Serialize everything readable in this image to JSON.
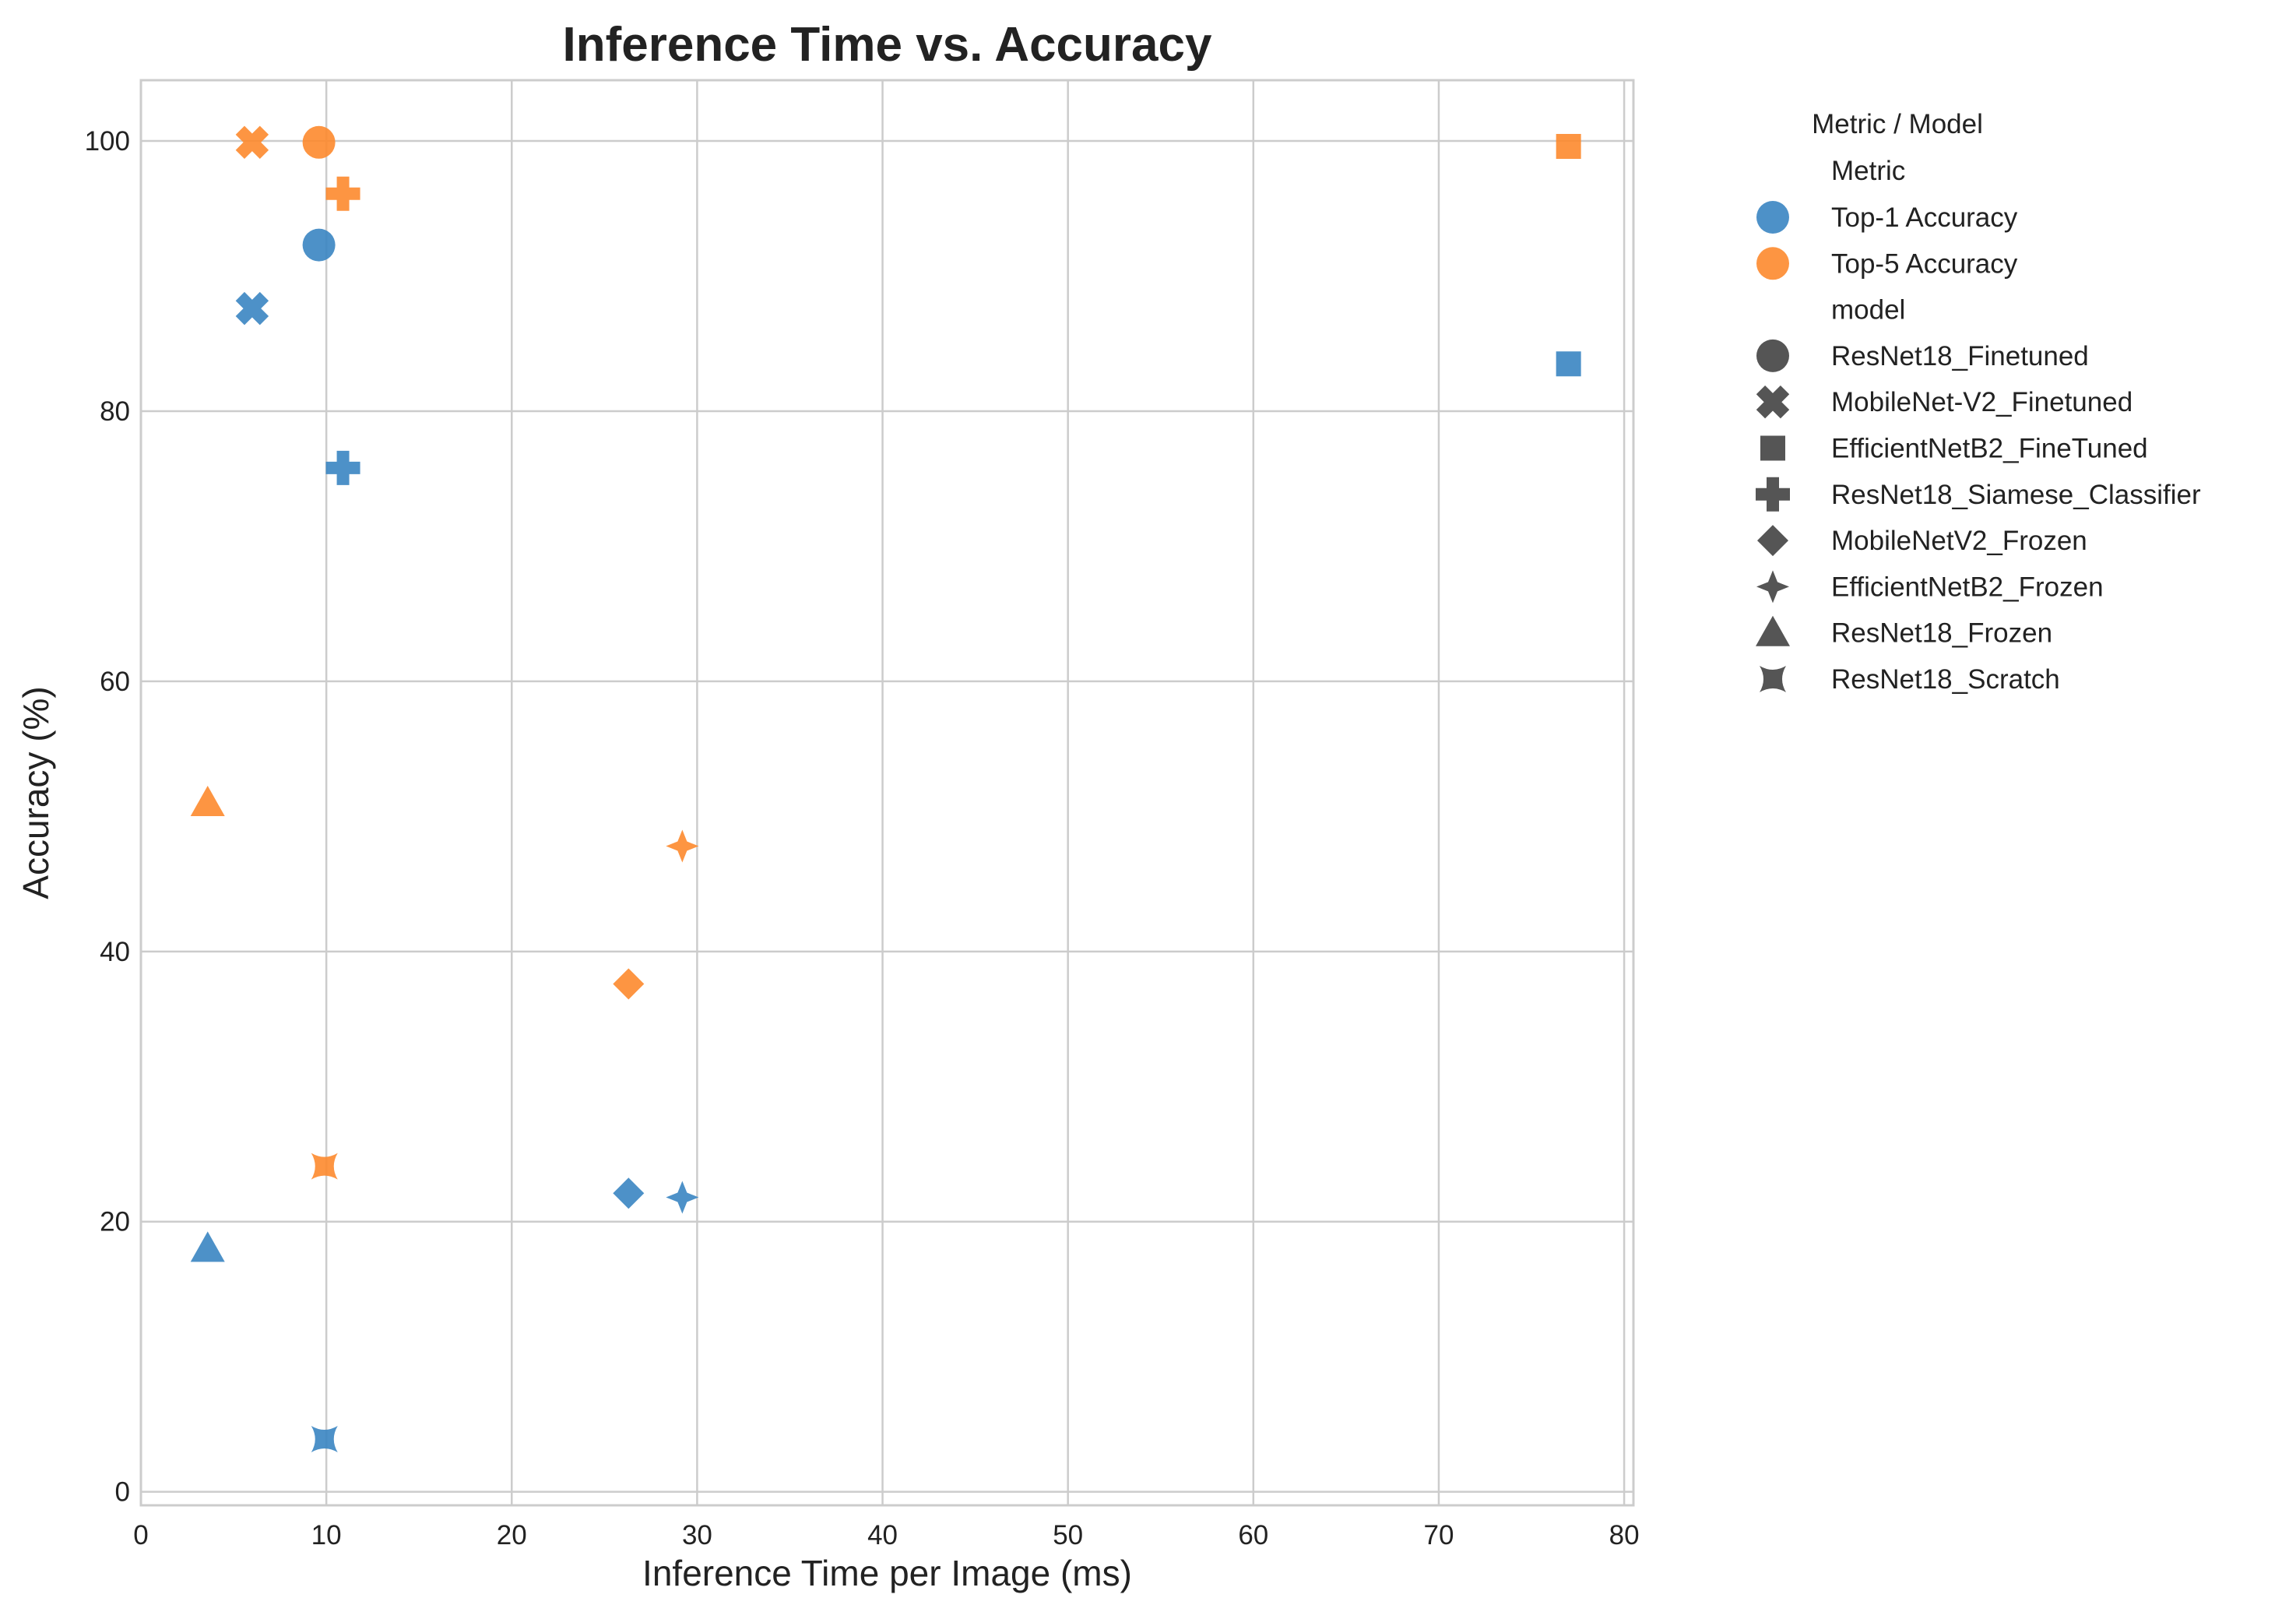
{
  "chart_data": {
    "type": "scatter",
    "title": "Inference Time vs. Accuracy",
    "xlabel": "Inference Time per Image (ms)",
    "ylabel": "Accuracy (%)",
    "xlim": [
      0,
      80.5
    ],
    "ylim": [
      -1,
      104.5
    ],
    "xticks": [
      "0",
      "10",
      "20",
      "30",
      "40",
      "50",
      "60",
      "70",
      "80"
    ],
    "yticks": [
      "0",
      "20",
      "40",
      "60",
      "80",
      "100"
    ],
    "grid": true,
    "legend_position": "outside-right",
    "legend": {
      "title": "Metric / Model",
      "metric_header": "Metric",
      "metrics": [
        {
          "name": "Top-1 Accuracy",
          "color": "#3a85c2"
        },
        {
          "name": "Top-5 Accuracy",
          "color": "#fd8a2e"
        }
      ],
      "model_header": "model",
      "models": [
        {
          "name": "ResNet18_Finetuned",
          "marker": "circle"
        },
        {
          "name": "MobileNet-V2_Finetuned",
          "marker": "x"
        },
        {
          "name": "EfficientNetB2_FineTuned",
          "marker": "square"
        },
        {
          "name": "ResNet18_Siamese_Classifier",
          "marker": "plus"
        },
        {
          "name": "MobileNetV2_Frozen",
          "marker": "diamond"
        },
        {
          "name": "EfficientNetB2_Frozen",
          "marker": "star4"
        },
        {
          "name": "ResNet18_Frozen",
          "marker": "triangle"
        },
        {
          "name": "ResNet18_Scratch",
          "marker": "star4-concave"
        }
      ],
      "legend_marker_color": "#555555"
    },
    "series": [
      {
        "name": "Top-1 Accuracy",
        "color": "#3a85c2",
        "points": [
          {
            "model": "ResNet18_Finetuned",
            "x": 9.6,
            "y": 92.3
          },
          {
            "model": "MobileNet-V2_Finetuned",
            "x": 6.0,
            "y": 87.6
          },
          {
            "model": "EfficientNetB2_FineTuned",
            "x": 77.0,
            "y": 83.5
          },
          {
            "model": "ResNet18_Siamese_Classifier",
            "x": 10.9,
            "y": 75.8
          },
          {
            "model": "MobileNetV2_Frozen",
            "x": 26.3,
            "y": 22.1
          },
          {
            "model": "EfficientNetB2_Frozen",
            "x": 29.2,
            "y": 21.8
          },
          {
            "model": "ResNet18_Frozen",
            "x": 3.6,
            "y": 18.0
          },
          {
            "model": "ResNet18_Scratch",
            "x": 9.9,
            "y": 3.9
          }
        ]
      },
      {
        "name": "Top-5 Accuracy",
        "color": "#fd8a2e",
        "points": [
          {
            "model": "ResNet18_Finetuned",
            "x": 9.6,
            "y": 99.9
          },
          {
            "model": "MobileNet-V2_Finetuned",
            "x": 6.0,
            "y": 99.9
          },
          {
            "model": "EfficientNetB2_FineTuned",
            "x": 77.0,
            "y": 99.6
          },
          {
            "model": "ResNet18_Siamese_Classifier",
            "x": 10.9,
            "y": 96.1
          },
          {
            "model": "MobileNetV2_Frozen",
            "x": 26.3,
            "y": 37.6
          },
          {
            "model": "EfficientNetB2_Frozen",
            "x": 29.2,
            "y": 47.8
          },
          {
            "model": "ResNet18_Frozen",
            "x": 3.6,
            "y": 51.0
          },
          {
            "model": "ResNet18_Scratch",
            "x": 9.9,
            "y": 24.1
          }
        ]
      }
    ]
  }
}
